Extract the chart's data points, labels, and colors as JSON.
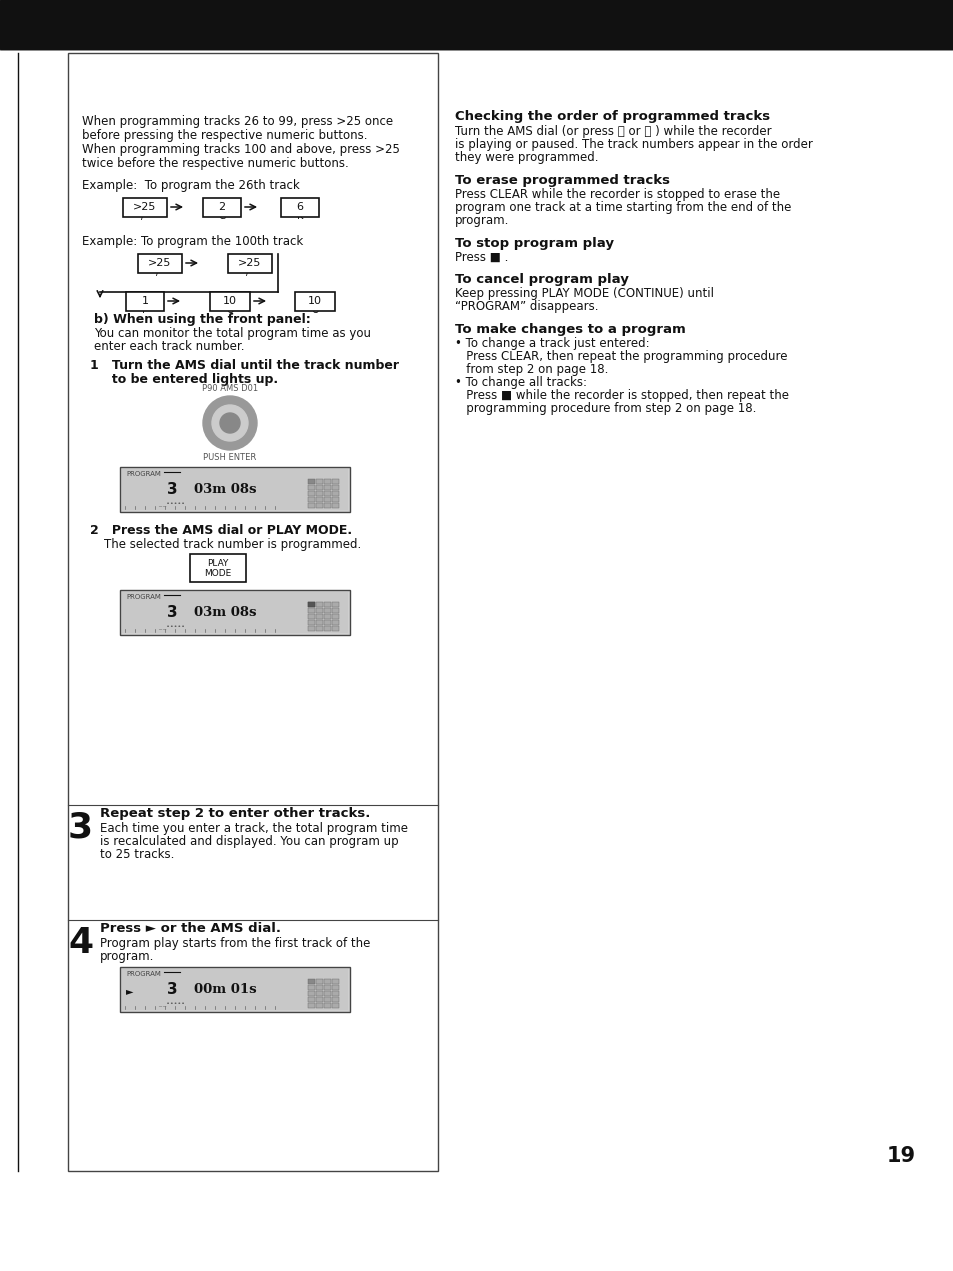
{
  "background_color": "#ffffff",
  "page_number": "19",
  "left_panel": {
    "intro_text": [
      "When programming tracks 26 to 99, press >25 once",
      "before pressing the respective numeric buttons.",
      "When programming tracks 100 and above, press >25",
      "twice before the respective numeric buttons."
    ],
    "example1_label": "Example:  To program the 26th track",
    "example2_label": "Example: To program the 100th track",
    "section_b_title": "b) When using the front panel:",
    "section_b_body": [
      "You can monitor the total program time as you",
      "enter each track number."
    ],
    "step1_line1": "1   Turn the AMS dial until the track number",
    "step1_line2": "     to be entered lights up.",
    "step2_title": "2   Press the AMS dial or PLAY MODE.",
    "step2_body": "The selected track number is programmed.",
    "step3_title": "Repeat step 2 to enter other tracks.",
    "step3_body": [
      "Each time you enter a track, the total program time",
      "is recalculated and displayed. You can program up",
      "to 25 tracks."
    ],
    "step4_title": "Press ► or the AMS dial.",
    "step4_body": [
      "Program play starts from the first track of the",
      "program."
    ]
  },
  "right_panel": {
    "section1_title": "Checking the order of programmed tracks",
    "section1_body": [
      "Turn the AMS dial (or press ⏮ or ⏭ ) while the recorder",
      "is playing or paused. The track numbers appear in the order",
      "they were programmed."
    ],
    "section2_title": "To erase programmed tracks",
    "section2_body": [
      "Press CLEAR while the recorder is stopped to erase the",
      "program one track at a time starting from the end of the",
      "program."
    ],
    "section3_title": "To stop program play",
    "section3_body": "Press ■ .",
    "section4_title": "To cancel program play",
    "section4_body": [
      "Keep pressing PLAY MODE (CONTINUE) until",
      "“PROGRAM” disappears."
    ],
    "section5_title": "To make changes to a program",
    "section5_body": [
      "• To change a track just entered:",
      "   Press CLEAR, then repeat the programming procedure",
      "   from step 2 on page 18.",
      "• To change all tracks:",
      "   Press ■ while the recorder is stopped, then repeat the",
      "   programming procedure from step 2 on page 18."
    ]
  }
}
